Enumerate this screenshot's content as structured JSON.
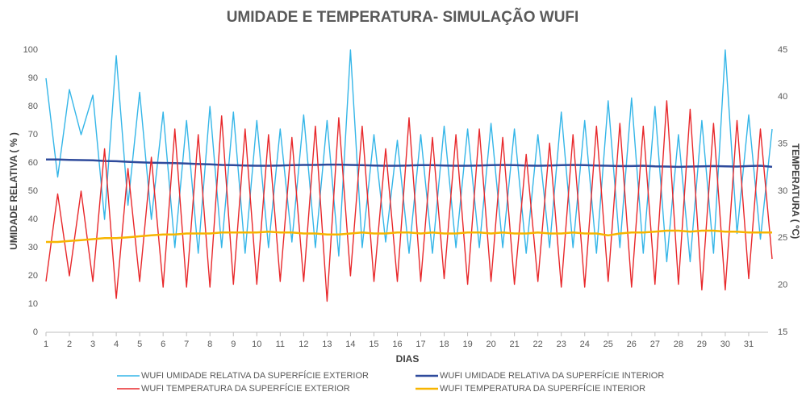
{
  "chart_data": {
    "type": "line",
    "title": "UMIDADE E TEMPERATURA- SIMULAÇÃO WUFI",
    "xlabel": "DIAS",
    "ylabel": "UMIDADE RELATIVA ( % )",
    "y2label": "TEMPERATURA ( ºC)",
    "xlim": [
      1,
      32
    ],
    "xticks": [
      1,
      2,
      3,
      4,
      5,
      6,
      7,
      8,
      9,
      10,
      11,
      12,
      13,
      14,
      15,
      16,
      17,
      18,
      19,
      20,
      21,
      22,
      23,
      24,
      25,
      26,
      27,
      28,
      29,
      30,
      31
    ],
    "ylim": [
      0,
      100
    ],
    "yticks": [
      0,
      10,
      20,
      30,
      40,
      50,
      60,
      70,
      80,
      90,
      100
    ],
    "y2lim": [
      15,
      45
    ],
    "y2ticks": [
      15,
      20,
      25,
      30,
      35,
      40,
      45
    ],
    "grid": false,
    "legend": "bottom",
    "x": [
      1,
      1.5,
      2,
      2.5,
      3,
      3.5,
      4,
      4.5,
      5,
      5.5,
      6,
      6.5,
      7,
      7.5,
      8,
      8.5,
      9,
      9.5,
      10,
      10.5,
      11,
      11.5,
      12,
      12.5,
      13,
      13.5,
      14,
      14.5,
      15,
      15.5,
      16,
      16.5,
      17,
      17.5,
      18,
      18.5,
      19,
      19.5,
      20,
      20.5,
      21,
      21.5,
      22,
      22.5,
      23,
      23.5,
      24,
      24.5,
      25,
      25.5,
      26,
      26.5,
      27,
      27.5,
      28,
      28.5,
      29,
      29.5,
      30,
      30.5,
      31,
      31.5,
      32
    ],
    "series": [
      {
        "name": "WUFI UMIDADE RELATIVA DA SUPERFÍCIE EXTERIOR",
        "color": "#35b6e8",
        "axis": "y",
        "values": [
          90,
          55,
          86,
          70,
          84,
          40,
          98,
          45,
          85,
          40,
          78,
          30,
          75,
          28,
          80,
          30,
          78,
          28,
          75,
          30,
          72,
          32,
          77,
          30,
          75,
          27,
          100,
          30,
          70,
          32,
          68,
          28,
          70,
          28,
          73,
          30,
          72,
          30,
          74,
          30,
          72,
          28,
          70,
          30,
          78,
          30,
          75,
          28,
          82,
          30,
          83,
          28,
          80,
          25,
          70,
          25,
          75,
          28,
          100,
          35,
          77,
          33,
          72
        ]
      },
      {
        "name": "WUFI UMIDADE RELATIVA DA SUPERFÍCIE INTERIOR",
        "color": "#2f4b9c",
        "axis": "y",
        "values": [
          61.2,
          61.2,
          61.1,
          61,
          60.9,
          60.7,
          60.6,
          60.4,
          60.2,
          60.1,
          60,
          59.9,
          59.8,
          59.6,
          59.5,
          59.3,
          59.2,
          59.1,
          59,
          59,
          59.1,
          59.2,
          59.3,
          59.3,
          59.4,
          59.4,
          59.3,
          59.2,
          59.1,
          59,
          59,
          59.1,
          59.2,
          59.2,
          59.1,
          59,
          59,
          59.1,
          59.2,
          59.3,
          59.2,
          59.1,
          59,
          59.1,
          59.2,
          59.3,
          59.2,
          59.1,
          59,
          58.9,
          58.9,
          59,
          58.8,
          58.7,
          58.6,
          58.7,
          58.8,
          58.9,
          58.8,
          58.7,
          58.9,
          59,
          58.6
        ]
      },
      {
        "name": "WUFI TEMPERATURA DA SUPERFÍCIE EXTERIOR",
        "color": "#e8282b",
        "axis": "y2",
        "values": [
          20.4,
          29.7,
          21,
          30,
          20.4,
          34.5,
          18.6,
          32.4,
          20.4,
          33.6,
          19.8,
          36.6,
          19.8,
          36,
          19.8,
          38,
          20.1,
          36.6,
          20.1,
          36,
          20.4,
          35.7,
          20.4,
          36.9,
          18.3,
          37.8,
          21,
          36.9,
          20.4,
          34.5,
          20.4,
          37.8,
          20.4,
          35.7,
          20.7,
          36,
          20.1,
          36.6,
          20.4,
          35.7,
          20.1,
          33.9,
          20.4,
          35.1,
          19.8,
          36,
          19.8,
          36.9,
          20.4,
          37.2,
          19.8,
          36.9,
          20.1,
          39.6,
          20.1,
          38.7,
          19.5,
          37.2,
          19.5,
          37.5,
          20.7,
          36.6,
          22.8
        ]
      },
      {
        "name": "WUFI TEMPERATURA DA SUPERFÍCIE INTERIOR",
        "color": "#f7b500",
        "axis": "y2",
        "values": [
          24.6,
          24.6,
          24.7,
          24.8,
          24.9,
          25,
          25,
          25.1,
          25.2,
          25.3,
          25.4,
          25.4,
          25.5,
          25.5,
          25.5,
          25.6,
          25.6,
          25.6,
          25.6,
          25.7,
          25.6,
          25.6,
          25.5,
          25.5,
          25.4,
          25.4,
          25.5,
          25.6,
          25.5,
          25.5,
          25.6,
          25.6,
          25.5,
          25.6,
          25.5,
          25.5,
          25.6,
          25.6,
          25.5,
          25.6,
          25.5,
          25.5,
          25.6,
          25.5,
          25.5,
          25.6,
          25.5,
          25.5,
          25.3,
          25.5,
          25.6,
          25.6,
          25.7,
          25.8,
          25.8,
          25.7,
          25.8,
          25.8,
          25.7,
          25.7,
          25.6,
          25.6,
          25.6
        ]
      }
    ]
  }
}
